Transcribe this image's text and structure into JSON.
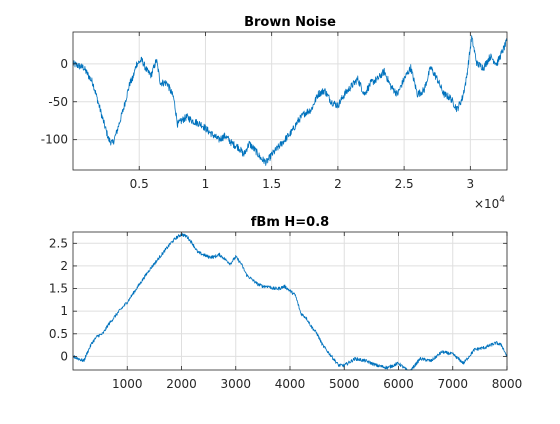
{
  "chart_data": [
    {
      "type": "line",
      "title": "Brown Noise",
      "xlabel": "",
      "ylabel": "",
      "x_exponent_label": "10",
      "x_exponent_power": "4",
      "xlim": [
        0,
        32768
      ],
      "ylim": [
        -140,
        42
      ],
      "xticks": [
        5000,
        10000,
        15000,
        20000,
        25000,
        30000
      ],
      "xtick_labels": [
        "0.5",
        "1",
        "1.5",
        "2",
        "2.5",
        "3"
      ],
      "yticks": [
        -100,
        -50,
        0
      ],
      "ytick_labels": [
        "-100",
        "-50",
        "0"
      ],
      "grid": true,
      "line_color": "#0072BD",
      "series": [
        {
          "x": [
            0,
            800,
            1500,
            2200,
            2700,
            3000,
            3300,
            3800,
            4300,
            4500,
            4800,
            5200,
            5600,
            5900,
            6300,
            6600,
            7100,
            7600,
            7900,
            8200,
            8600,
            9000,
            9700,
            10300,
            11000,
            11500,
            12000,
            12500,
            12900,
            13300,
            13800,
            14200,
            14600,
            15000,
            15500,
            16000,
            16500,
            17000,
            17500,
            18000,
            18500,
            19000,
            19500,
            20000,
            20500,
            21000,
            21500,
            22000,
            22500,
            23000,
            23500,
            24000,
            24500,
            25000,
            25500,
            26000,
            26500,
            27000,
            27500,
            28000,
            28500,
            29000,
            29400,
            29700,
            30100,
            30500,
            31000,
            31500,
            32000,
            32768
          ],
          "y": [
            0,
            -5,
            -25,
            -70,
            -100,
            -105,
            -90,
            -60,
            -25,
            -20,
            0,
            5,
            -10,
            -15,
            5,
            -25,
            -25,
            -45,
            -80,
            -75,
            -70,
            -75,
            -80,
            -90,
            -100,
            -95,
            -105,
            -110,
            -120,
            -105,
            -115,
            -125,
            -130,
            -120,
            -110,
            -100,
            -90,
            -75,
            -65,
            -60,
            -40,
            -35,
            -50,
            -55,
            -40,
            -30,
            -20,
            -40,
            -25,
            -20,
            -10,
            -30,
            -40,
            -20,
            -5,
            -40,
            -35,
            -5,
            -20,
            -40,
            -45,
            -60,
            -45,
            -20,
            35,
            0,
            -5,
            10,
            0,
            30
          ]
        }
      ]
    },
    {
      "type": "line",
      "title": "fBm H=0.8",
      "xlabel": "",
      "ylabel": "",
      "xlim": [
        0,
        8000
      ],
      "ylim": [
        -0.3,
        2.75
      ],
      "xticks": [
        1000,
        2000,
        3000,
        4000,
        5000,
        6000,
        7000,
        8000
      ],
      "xtick_labels": [
        "1000",
        "2000",
        "3000",
        "4000",
        "5000",
        "6000",
        "7000",
        "8000"
      ],
      "yticks": [
        0,
        0.5,
        1,
        1.5,
        2,
        2.5
      ],
      "ytick_labels": [
        "0",
        "0.5",
        "1",
        "1.5",
        "2",
        "2.5"
      ],
      "grid": true,
      "line_color": "#0072BD",
      "series": [
        {
          "x": [
            0,
            100,
            200,
            250,
            350,
            450,
            550,
            650,
            750,
            850,
            1000,
            1200,
            1400,
            1600,
            1800,
            1900,
            2000,
            2100,
            2200,
            2300,
            2400,
            2500,
            2600,
            2700,
            2800,
            2900,
            3000,
            3100,
            3200,
            3300,
            3400,
            3500,
            3600,
            3700,
            3800,
            3900,
            4000,
            4100,
            4200,
            4300,
            4400,
            4500,
            4600,
            4700,
            4800,
            4900,
            5000,
            5200,
            5400,
            5600,
            5800,
            6000,
            6200,
            6400,
            6600,
            6800,
            7000,
            7200,
            7400,
            7600,
            7800,
            7900,
            8000
          ],
          "y": [
            0.0,
            -0.05,
            -0.1,
            0.05,
            0.3,
            0.45,
            0.5,
            0.7,
            0.85,
            1.0,
            1.2,
            1.55,
            1.9,
            2.2,
            2.5,
            2.62,
            2.7,
            2.65,
            2.5,
            2.3,
            2.25,
            2.2,
            2.2,
            2.25,
            2.15,
            2.05,
            2.2,
            2.05,
            1.8,
            1.7,
            1.6,
            1.55,
            1.55,
            1.5,
            1.5,
            1.55,
            1.45,
            1.35,
            0.95,
            0.85,
            0.65,
            0.5,
            0.25,
            0.1,
            -0.05,
            -0.2,
            -0.2,
            -0.05,
            -0.1,
            -0.2,
            -0.25,
            -0.15,
            -0.35,
            -0.05,
            -0.1,
            0.1,
            0.05,
            -0.15,
            0.15,
            0.2,
            0.3,
            0.25,
            0.0
          ]
        }
      ]
    }
  ]
}
